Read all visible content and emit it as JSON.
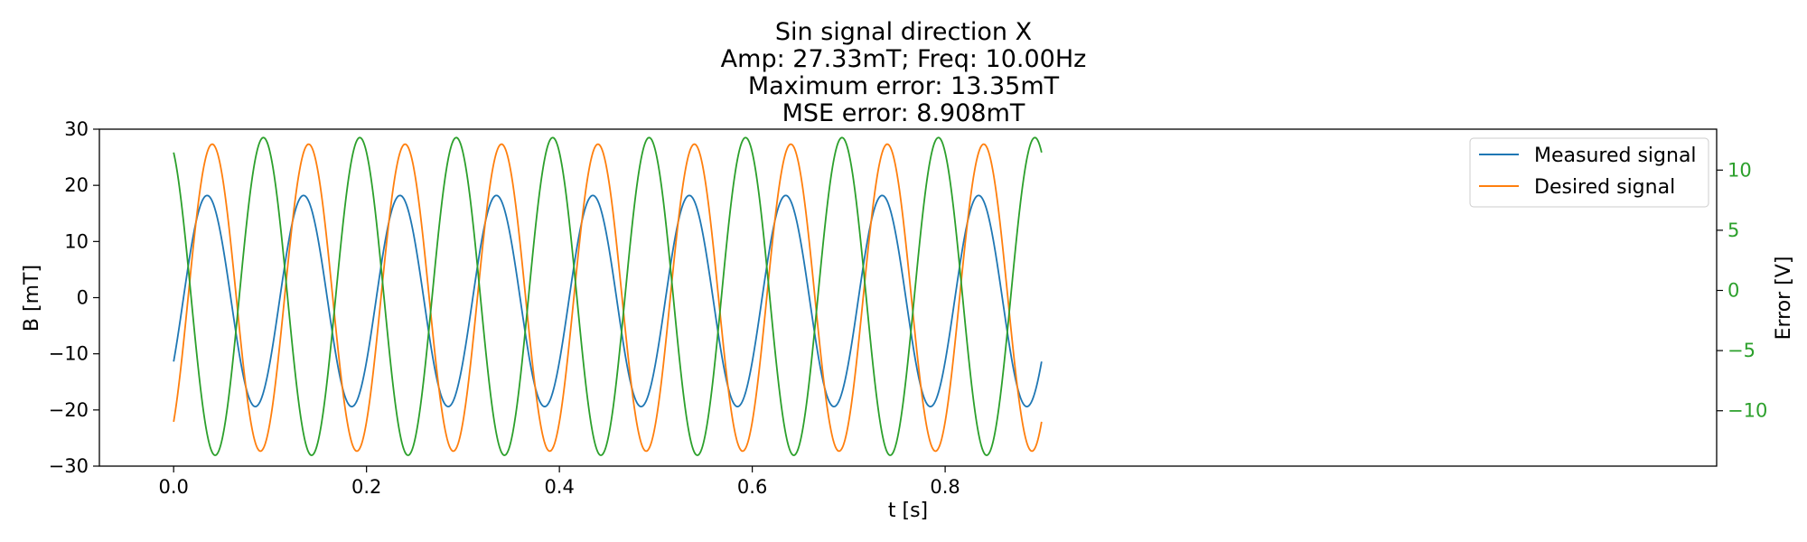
{
  "chart_data": {
    "type": "line",
    "title_lines": [
      "Sin signal direction X",
      "Amp: 27.33mT; Freq: 10.00Hz",
      "Maximum error: 13.35mT",
      "MSE error: 8.908mT"
    ],
    "xlabel": "t [s]",
    "ylabel": "B [mT]",
    "ylabel_right": "Error [V]",
    "xlim": [
      -0.077,
      1.6
    ],
    "ylim": [
      -30,
      30
    ],
    "ylim_right": [
      -14.6,
      13.4
    ],
    "x_ticks": [
      {
        "value": 0.0,
        "label": "0.0"
      },
      {
        "value": 0.2,
        "label": "0.2"
      },
      {
        "value": 0.4,
        "label": "0.4"
      },
      {
        "value": 0.6,
        "label": "0.6"
      },
      {
        "value": 0.8,
        "label": "0.8"
      }
    ],
    "y_ticks": [
      {
        "value": 30,
        "label": "30"
      },
      {
        "value": 20,
        "label": "20"
      },
      {
        "value": 10,
        "label": "10"
      },
      {
        "value": 0,
        "label": "0"
      },
      {
        "value": -10,
        "label": "−10"
      },
      {
        "value": -20,
        "label": "−20"
      },
      {
        "value": -30,
        "label": "−30"
      }
    ],
    "y_ticks_right": [
      {
        "value": 10,
        "label": "10"
      },
      {
        "value": 5,
        "label": "5"
      },
      {
        "value": 0,
        "label": "0"
      },
      {
        "value": -5,
        "label": "−5"
      },
      {
        "value": -10,
        "label": "−10"
      }
    ],
    "legend_position": "top-right",
    "grid": false,
    "t_range": [
      0,
      0.9
    ],
    "series": [
      {
        "name": "Measured signal",
        "axis": "left",
        "color": "#1f77b4",
        "amplitude": 18.8,
        "offset": -0.6,
        "freq_hz": 10,
        "phase_deg": -35
      },
      {
        "name": "Desired signal",
        "axis": "left",
        "color": "#ff7f0e",
        "amplitude": 27.33,
        "offset": 0,
        "freq_hz": 10,
        "phase_deg": -54
      },
      {
        "name": "",
        "axis": "right",
        "color": "#2ca02c",
        "amplitude": 13.2,
        "offset": -0.5,
        "freq_hz": 10,
        "phase_deg": 115
      }
    ],
    "right_axis_color": "#2ca02c"
  }
}
